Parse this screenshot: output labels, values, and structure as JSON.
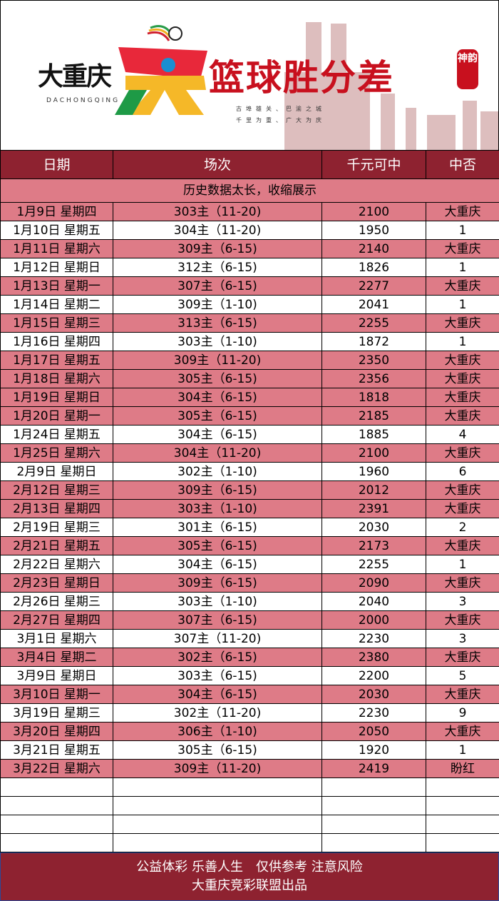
{
  "banner": {
    "brand": "大重庆",
    "brand_sub": "DACHONGQING",
    "title": "篮球胜分差",
    "seal": "神韵",
    "tagline1": "古埠雄关、巴渝之城",
    "tagline2": "千里为重、广大为庆"
  },
  "colors": {
    "header": "#8e2230",
    "highlight": "#de7b87"
  },
  "table": {
    "headers": [
      "日期",
      "场次",
      "千元可中",
      "中否"
    ],
    "note": "历史数据太长，收缩展示",
    "rows": [
      {
        "date": "1月9日 星期四",
        "match": "303主（11-20)",
        "amount": "2100",
        "result": "大重庆"
      },
      {
        "date": "1月10日 星期五",
        "match": "304主（11-20)",
        "amount": "1950",
        "result": "1"
      },
      {
        "date": "1月11日 星期六",
        "match": "309主（6-15)",
        "amount": "2140",
        "result": "大重庆"
      },
      {
        "date": "1月12日 星期日",
        "match": "312主（6-15)",
        "amount": "1826",
        "result": "1"
      },
      {
        "date": "1月13日 星期一",
        "match": "307主（6-15)",
        "amount": "2277",
        "result": "大重庆"
      },
      {
        "date": "1月14日 星期二",
        "match": "309主（1-10)",
        "amount": "2041",
        "result": "1"
      },
      {
        "date": "1月15日 星期三",
        "match": "313主（6-15)",
        "amount": "2255",
        "result": "大重庆"
      },
      {
        "date": "1月16日 星期四",
        "match": "303主（1-10)",
        "amount": "1872",
        "result": "1"
      },
      {
        "date": "1月17日 星期五",
        "match": "309主（11-20)",
        "amount": "2350",
        "result": "大重庆"
      },
      {
        "date": "1月18日 星期六",
        "match": "305主（6-15)",
        "amount": "2356",
        "result": "大重庆"
      },
      {
        "date": "1月19日 星期日",
        "match": "304主（6-15)",
        "amount": "1818",
        "result": "大重庆"
      },
      {
        "date": "1月20日 星期一",
        "match": "305主（6-15)",
        "amount": "2185",
        "result": "大重庆"
      },
      {
        "date": "1月24日 星期五",
        "match": "304主（6-15)",
        "amount": "1885",
        "result": "4"
      },
      {
        "date": "1月25日 星期六",
        "match": "304主（11-20)",
        "amount": "2100",
        "result": "大重庆"
      },
      {
        "date": "2月9日 星期日",
        "match": "302主（1-10)",
        "amount": "1960",
        "result": "6"
      },
      {
        "date": "2月12日 星期三",
        "match": "309主（6-15)",
        "amount": "2012",
        "result": "大重庆"
      },
      {
        "date": "2月13日 星期四",
        "match": "303主（1-10)",
        "amount": "2391",
        "result": "大重庆"
      },
      {
        "date": "2月19日 星期三",
        "match": "301主（6-15)",
        "amount": "2030",
        "result": "2"
      },
      {
        "date": "2月21日 星期五",
        "match": "305主（6-15)",
        "amount": "2173",
        "result": "大重庆"
      },
      {
        "date": "2月22日 星期六",
        "match": "304主（6-15)",
        "amount": "2255",
        "result": "1"
      },
      {
        "date": "2月23日 星期日",
        "match": "309主（6-15)",
        "amount": "2090",
        "result": "大重庆"
      },
      {
        "date": "2月26日 星期三",
        "match": "303主（1-10)",
        "amount": "2040",
        "result": "3"
      },
      {
        "date": "2月27日 星期四",
        "match": "307主（6-15)",
        "amount": "2000",
        "result": "大重庆"
      },
      {
        "date": "3月1日 星期六",
        "match": "307主（11-20)",
        "amount": "2230",
        "result": "3"
      },
      {
        "date": "3月4日 星期二",
        "match": "302主（6-15)",
        "amount": "2380",
        "result": "大重庆"
      },
      {
        "date": "3月9日 星期日",
        "match": "303主（6-15)",
        "amount": "2200",
        "result": "5"
      },
      {
        "date": "3月10日 星期一",
        "match": "304主（6-15)",
        "amount": "2030",
        "result": "大重庆"
      },
      {
        "date": "3月19日 星期三",
        "match": "302主（11-20)",
        "amount": "2230",
        "result": "9"
      },
      {
        "date": "3月20日 星期四",
        "match": "306主（1-10)",
        "amount": "2050",
        "result": "大重庆"
      },
      {
        "date": "3月21日 星期五",
        "match": "305主（6-15)",
        "amount": "1920",
        "result": "1"
      },
      {
        "date": "3月22日 星期六",
        "match": "309主（11-20)",
        "amount": "2419",
        "result": "盼红"
      }
    ]
  },
  "footer": {
    "line1": "公益体彩 乐善人生　仅供参考 注意风险",
    "line2": "大重庆竞彩联盟出品"
  }
}
